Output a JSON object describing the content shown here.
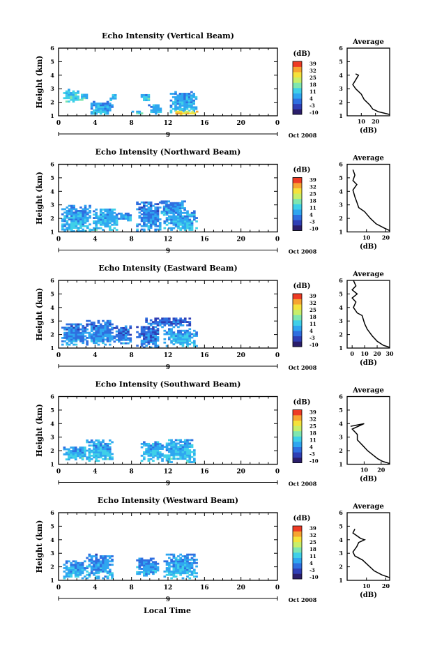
{
  "colorbar": {
    "unit_label": "(dB)",
    "tick_labels": [
      "39",
      "32",
      "25",
      "18",
      "11",
      "4",
      "-3",
      "-10"
    ],
    "colors": [
      "#2b1e6b",
      "#2f3fb5",
      "#2f6fe0",
      "#2fa6f0",
      "#3fd0e8",
      "#7fe6b0",
      "#c8ee6a",
      "#f5e23c",
      "#f7a431",
      "#ee3b24"
    ]
  },
  "date_label": "Oct 2008",
  "xaxis_tick_labels": [
    "0",
    "4",
    "8",
    "12",
    "16",
    "20",
    "0"
  ],
  "xaxis_day_label": "9",
  "xlabel": "Local Time",
  "ylabel": "Height (km)",
  "yaxis_tick_labels": [
    "1",
    "2",
    "3",
    "4",
    "5",
    "6"
  ],
  "avg_title": "Average",
  "avg_xlabel": "(dB)",
  "chart_data": [
    {
      "type": "heatmap",
      "title": "Echo Intensity (Vertical Beam)",
      "xlim": [
        0,
        24
      ],
      "ylim": [
        1,
        6
      ],
      "regions": [
        {
          "x0": 0.5,
          "x1": 2.2,
          "y0": 2.0,
          "y1": 2.9,
          "base": 14
        },
        {
          "x0": 2.2,
          "x1": 3.2,
          "y0": 2.0,
          "y1": 2.6,
          "base": 14
        },
        {
          "x0": 3.5,
          "x1": 5.8,
          "y0": 1.1,
          "y1": 2.0,
          "base": 9
        },
        {
          "x0": 5.6,
          "x1": 6.4,
          "y0": 2.1,
          "y1": 2.6,
          "base": 12
        },
        {
          "x0": 8.0,
          "x1": 9.2,
          "y0": 1.0,
          "y1": 1.3,
          "base": 16
        },
        {
          "x0": 9.0,
          "x1": 10.0,
          "y0": 2.1,
          "y1": 2.6,
          "base": 12
        },
        {
          "x0": 9.8,
          "x1": 11.2,
          "y0": 1.1,
          "y1": 1.8,
          "base": 10
        },
        {
          "x0": 12.2,
          "x1": 15.2,
          "y0": 1.2,
          "y1": 2.8,
          "base": 10
        },
        {
          "x0": 12.8,
          "x1": 15.2,
          "y0": 1.0,
          "y1": 1.3,
          "base": 33
        }
      ],
      "avg_profile": {
        "xlim": [
          0,
          30
        ],
        "xticks": [
          10,
          20
        ],
        "points": [
          [
            6,
            4.1
          ],
          [
            8,
            4.0
          ],
          [
            4,
            3.3
          ],
          [
            6,
            3.0
          ],
          [
            10,
            2.6
          ],
          [
            12,
            2.2
          ],
          [
            16,
            1.8
          ],
          [
            18,
            1.5
          ],
          [
            22,
            1.3
          ],
          [
            26,
            1.2
          ],
          [
            30,
            1.1
          ]
        ]
      }
    },
    {
      "type": "heatmap",
      "title": "Echo Intensity (Northward Beam)",
      "xlim": [
        0,
        24
      ],
      "ylim": [
        1,
        6
      ],
      "regions": [
        {
          "x0": 0.3,
          "x1": 3.5,
          "y0": 1.0,
          "y1": 2.9,
          "base": 9
        },
        {
          "x0": 3.5,
          "x1": 6.5,
          "y0": 1.1,
          "y1": 2.7,
          "base": 11
        },
        {
          "x0": 6.5,
          "x1": 8.0,
          "y0": 1.8,
          "y1": 2.4,
          "base": 8
        },
        {
          "x0": 8.5,
          "x1": 11.2,
          "y0": 1.0,
          "y1": 3.2,
          "base": 7
        },
        {
          "x0": 11.2,
          "x1": 13.8,
          "y0": 2.2,
          "y1": 3.3,
          "base": 8
        },
        {
          "x0": 11.5,
          "x1": 15.2,
          "y0": 1.1,
          "y1": 2.5,
          "base": 10
        }
      ],
      "avg_profile": {
        "xlim": [
          0,
          22
        ],
        "xticks": [
          10,
          20
        ],
        "points": [
          [
            3,
            5.6
          ],
          [
            4,
            5.2
          ],
          [
            3,
            4.8
          ],
          [
            5,
            4.5
          ],
          [
            3,
            4.1
          ],
          [
            4,
            3.6
          ],
          [
            5,
            3.2
          ],
          [
            6,
            2.8
          ],
          [
            9,
            2.5
          ],
          [
            12,
            2.0
          ],
          [
            15,
            1.6
          ],
          [
            19,
            1.3
          ],
          [
            22,
            1.1
          ]
        ]
      }
    },
    {
      "type": "heatmap",
      "title": "Echo Intensity (Eastward Beam)",
      "xlim": [
        0,
        24
      ],
      "ylim": [
        1,
        6
      ],
      "regions": [
        {
          "x0": 0.3,
          "x1": 3.0,
          "y0": 1.2,
          "y1": 2.8,
          "base": 6
        },
        {
          "x0": 3.0,
          "x1": 6.0,
          "y0": 1.2,
          "y1": 3.0,
          "base": 6
        },
        {
          "x0": 6.0,
          "x1": 7.8,
          "y0": 1.3,
          "y1": 2.6,
          "base": 5
        },
        {
          "x0": 8.5,
          "x1": 11.0,
          "y0": 1.0,
          "y1": 2.6,
          "base": 4
        },
        {
          "x0": 9.5,
          "x1": 14.5,
          "y0": 2.5,
          "y1": 3.2,
          "base": 3
        },
        {
          "x0": 11.5,
          "x1": 15.2,
          "y0": 1.1,
          "y1": 2.4,
          "base": 10
        }
      ],
      "avg_profile": {
        "xlim": [
          -4,
          30
        ],
        "xticks": [
          0,
          10,
          20,
          30
        ],
        "points": [
          [
            1,
            6.0
          ],
          [
            3,
            5.6
          ],
          [
            0,
            5.3
          ],
          [
            4,
            5.0
          ],
          [
            0,
            4.7
          ],
          [
            3,
            4.4
          ],
          [
            1,
            4.0
          ],
          [
            4,
            3.6
          ],
          [
            8,
            3.4
          ],
          [
            10,
            2.8
          ],
          [
            12,
            2.4
          ],
          [
            16,
            1.9
          ],
          [
            20,
            1.5
          ],
          [
            25,
            1.2
          ],
          [
            30,
            1.05
          ]
        ]
      }
    },
    {
      "type": "heatmap",
      "title": "Echo Intensity (Southward Beam)",
      "xlim": [
        0,
        24
      ],
      "ylim": [
        1,
        6
      ],
      "regions": [
        {
          "x0": 0.5,
          "x1": 3.0,
          "y0": 1.3,
          "y1": 2.3,
          "base": 11
        },
        {
          "x0": 3.0,
          "x1": 6.0,
          "y0": 1.2,
          "y1": 2.8,
          "base": 11
        },
        {
          "x0": 9.0,
          "x1": 11.5,
          "y0": 1.2,
          "y1": 2.7,
          "base": 11
        },
        {
          "x0": 11.5,
          "x1": 15.0,
          "y0": 1.1,
          "y1": 2.8,
          "base": 11
        }
      ],
      "avg_profile": {
        "xlim": [
          0,
          25
        ],
        "xticks": [
          10,
          20
        ],
        "points": [
          [
            2,
            3.8
          ],
          [
            10,
            4.0
          ],
          [
            3,
            3.6
          ],
          [
            6,
            3.2
          ],
          [
            6,
            2.8
          ],
          [
            9,
            2.4
          ],
          [
            12,
            2.0
          ],
          [
            15,
            1.7
          ],
          [
            18,
            1.4
          ],
          [
            21,
            1.2
          ],
          [
            25,
            1.05
          ]
        ]
      }
    },
    {
      "type": "heatmap",
      "title": "Echo Intensity (Westward Beam)",
      "xlim": [
        0,
        24
      ],
      "ylim": [
        1,
        6
      ],
      "regions": [
        {
          "x0": 0.5,
          "x1": 3.0,
          "y0": 1.1,
          "y1": 2.4,
          "base": 9
        },
        {
          "x0": 3.0,
          "x1": 6.0,
          "y0": 1.1,
          "y1": 2.9,
          "base": 8
        },
        {
          "x0": 8.5,
          "x1": 11.0,
          "y0": 1.3,
          "y1": 2.6,
          "base": 8
        },
        {
          "x0": 11.5,
          "x1": 15.2,
          "y0": 1.1,
          "y1": 2.9,
          "base": 10
        }
      ],
      "avg_profile": {
        "xlim": [
          0,
          22
        ],
        "xticks": [
          10,
          20
        ],
        "points": [
          [
            4,
            4.8
          ],
          [
            3,
            4.5
          ],
          [
            7,
            4.1
          ],
          [
            9,
            4.0
          ],
          [
            6,
            3.8
          ],
          [
            5,
            3.5
          ],
          [
            3,
            3.1
          ],
          [
            4,
            2.8
          ],
          [
            8,
            2.5
          ],
          [
            11,
            2.1
          ],
          [
            14,
            1.7
          ],
          [
            18,
            1.4
          ],
          [
            22,
            1.2
          ]
        ]
      }
    }
  ]
}
